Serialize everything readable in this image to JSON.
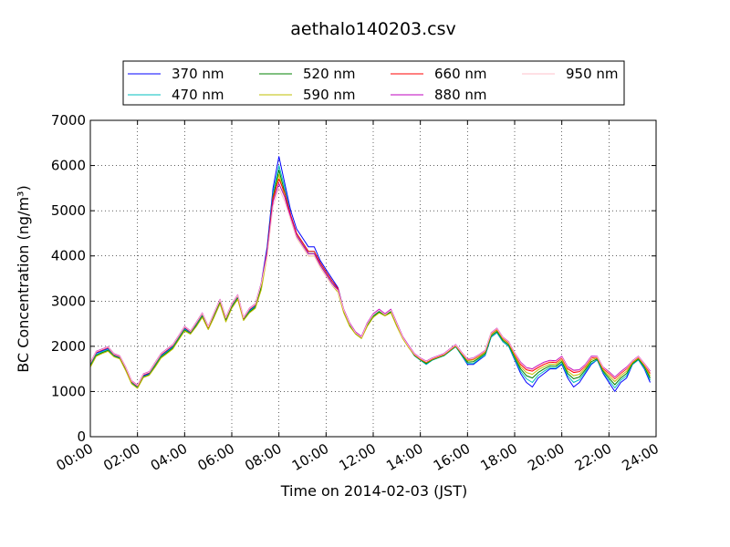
{
  "chart_data": {
    "type": "line",
    "title": "aethalo140203.csv",
    "xlabel": "Time on 2014-02-03 (JST)",
    "ylabel": "BC Concentration (ng/m³)",
    "xlim": [
      0,
      24
    ],
    "ylim": [
      0,
      7000
    ],
    "x_tick_labels": [
      "00:00",
      "02:00",
      "04:00",
      "06:00",
      "08:00",
      "10:00",
      "12:00",
      "14:00",
      "16:00",
      "18:00",
      "20:00",
      "22:00",
      "24:00"
    ],
    "y_tick_labels": [
      "0",
      "1000",
      "2000",
      "3000",
      "4000",
      "5000",
      "6000",
      "7000"
    ],
    "grid": true,
    "legend_position": "top",
    "x": [
      0.0,
      0.25,
      0.5,
      0.75,
      1.0,
      1.25,
      1.5,
      1.75,
      2.0,
      2.25,
      2.5,
      2.75,
      3.0,
      3.25,
      3.5,
      3.75,
      4.0,
      4.25,
      4.5,
      4.75,
      5.0,
      5.25,
      5.5,
      5.75,
      6.0,
      6.25,
      6.5,
      6.75,
      7.0,
      7.25,
      7.5,
      7.75,
      8.0,
      8.25,
      8.5,
      8.75,
      9.0,
      9.25,
      9.5,
      9.75,
      10.0,
      10.25,
      10.5,
      10.75,
      11.0,
      11.25,
      11.5,
      11.75,
      12.0,
      12.25,
      12.5,
      12.75,
      13.0,
      13.25,
      13.5,
      13.75,
      14.0,
      14.25,
      14.5,
      14.75,
      15.0,
      15.25,
      15.5,
      15.75,
      16.0,
      16.25,
      16.5,
      16.75,
      17.0,
      17.25,
      17.5,
      17.75,
      18.0,
      18.25,
      18.5,
      18.75,
      19.0,
      19.25,
      19.5,
      19.75,
      20.0,
      20.25,
      20.5,
      20.75,
      21.0,
      21.25,
      21.5,
      21.75,
      22.0,
      22.25,
      22.5,
      22.75,
      23.0,
      23.25,
      23.5,
      23.75
    ],
    "series": [
      {
        "name": "370 nm",
        "color": "#0000ff",
        "values": [
          1600,
          1850,
          1900,
          1950,
          1800,
          1750,
          1500,
          1200,
          1100,
          1350,
          1400,
          1600,
          1800,
          1900,
          2000,
          2200,
          2400,
          2300,
          2500,
          2700,
          2400,
          2700,
          3000,
          2600,
          2900,
          3100,
          2600,
          2800,
          2900,
          3400,
          4200,
          5500,
          6200,
          5600,
          5000,
          4600,
          4400,
          4200,
          4200,
          3900,
          3700,
          3500,
          3300,
          2800,
          2500,
          2300,
          2200,
          2500,
          2700,
          2800,
          2700,
          2800,
          2500,
          2200,
          2000,
          1800,
          1700,
          1600,
          1700,
          1750,
          1800,
          1900,
          2000,
          1800,
          1600,
          1600,
          1700,
          1800,
          2200,
          2300,
          2100,
          2000,
          1700,
          1400,
          1200,
          1100,
          1300,
          1400,
          1500,
          1500,
          1600,
          1300,
          1100,
          1200,
          1400,
          1600,
          1700,
          1400,
          1200,
          1000,
          1200,
          1300,
          1600,
          1700,
          1500,
          1200
        ]
      },
      {
        "name": "470 nm",
        "color": "#00bfbf",
        "values": [
          1580,
          1820,
          1880,
          1930,
          1790,
          1740,
          1480,
          1190,
          1090,
          1330,
          1380,
          1580,
          1780,
          1880,
          1980,
          2180,
          2380,
          2290,
          2480,
          2680,
          2390,
          2680,
          2980,
          2580,
          2880,
          3080,
          2590,
          2780,
          2880,
          3350,
          4100,
          5400,
          6000,
          5500,
          4900,
          4500,
          4300,
          4100,
          4100,
          3850,
          3650,
          3450,
          3260,
          2780,
          2480,
          2290,
          2190,
          2480,
          2680,
          2780,
          2690,
          2780,
          2480,
          2190,
          1990,
          1790,
          1690,
          1600,
          1690,
          1740,
          1790,
          1890,
          1990,
          1800,
          1620,
          1620,
          1720,
          1810,
          2200,
          2300,
          2100,
          2000,
          1720,
          1450,
          1280,
          1200,
          1360,
          1450,
          1530,
          1520,
          1620,
          1350,
          1200,
          1260,
          1440,
          1620,
          1700,
          1420,
          1250,
          1080,
          1250,
          1350,
          1600,
          1700,
          1520,
          1250
        ]
      },
      {
        "name": "520 nm",
        "color": "#008000",
        "values": [
          1560,
          1800,
          1860,
          1910,
          1780,
          1730,
          1470,
          1180,
          1080,
          1320,
          1370,
          1560,
          1760,
          1860,
          1960,
          2160,
          2360,
          2280,
          2460,
          2660,
          2380,
          2660,
          2960,
          2560,
          2860,
          3060,
          2580,
          2760,
          2860,
          3300,
          4050,
          5300,
          5900,
          5400,
          4850,
          4450,
          4250,
          4050,
          4050,
          3800,
          3600,
          3400,
          3230,
          2760,
          2460,
          2280,
          2180,
          2460,
          2660,
          2760,
          2680,
          2760,
          2460,
          2180,
          1980,
          1800,
          1700,
          1620,
          1700,
          1750,
          1800,
          1900,
          2000,
          1820,
          1650,
          1660,
          1750,
          1840,
          2230,
          2330,
          2130,
          2030,
          1760,
          1500,
          1350,
          1300,
          1420,
          1500,
          1570,
          1560,
          1660,
          1400,
          1280,
          1320,
          1480,
          1660,
          1720,
          1450,
          1300,
          1150,
          1300,
          1400,
          1620,
          1720,
          1550,
          1300
        ]
      },
      {
        "name": "590 nm",
        "color": "#bfbf00",
        "values": [
          1540,
          1780,
          1840,
          1890,
          1770,
          1720,
          1460,
          1170,
          1070,
          1310,
          1360,
          1540,
          1740,
          1840,
          1940,
          2140,
          2340,
          2270,
          2440,
          2640,
          2370,
          2640,
          2940,
          2540,
          2840,
          3040,
          2570,
          2740,
          2840,
          3250,
          4000,
          5200,
          5800,
          5300,
          4800,
          4400,
          4200,
          4000,
          4000,
          3750,
          3550,
          3350,
          3200,
          2740,
          2440,
          2270,
          2170,
          2440,
          2640,
          2740,
          2670,
          2740,
          2440,
          2170,
          1970,
          1810,
          1710,
          1640,
          1710,
          1760,
          1810,
          1910,
          2010,
          1840,
          1680,
          1700,
          1780,
          1870,
          2260,
          2360,
          2160,
          2060,
          1800,
          1550,
          1420,
          1380,
          1480,
          1550,
          1610,
          1600,
          1700,
          1450,
          1350,
          1380,
          1520,
          1700,
          1740,
          1480,
          1350,
          1220,
          1350,
          1450,
          1640,
          1740,
          1580,
          1350
        ]
      },
      {
        "name": "660 nm",
        "color": "#ff0000",
        "values": [
          1620,
          1870,
          1920,
          1970,
          1820,
          1770,
          1520,
          1220,
          1120,
          1370,
          1420,
          1620,
          1820,
          1920,
          2020,
          2220,
          2420,
          2320,
          2520,
          2720,
          2420,
          2720,
          3020,
          2620,
          2920,
          3120,
          2620,
          2820,
          2920,
          3380,
          4100,
          5300,
          5700,
          5400,
          4900,
          4500,
          4300,
          4100,
          4100,
          3850,
          3650,
          3450,
          3280,
          2800,
          2500,
          2300,
          2200,
          2500,
          2700,
          2800,
          2700,
          2800,
          2500,
          2200,
          2000,
          1820,
          1720,
          1650,
          1720,
          1770,
          1820,
          1920,
          2020,
          1850,
          1700,
          1720,
          1800,
          1890,
          2280,
          2380,
          2180,
          2080,
          1830,
          1600,
          1480,
          1450,
          1530,
          1600,
          1650,
          1640,
          1740,
          1500,
          1420,
          1440,
          1560,
          1740,
          1760,
          1510,
          1400,
          1280,
          1400,
          1500,
          1660,
          1760,
          1600,
          1400
        ]
      },
      {
        "name": "880 nm",
        "color": "#bf00bf",
        "values": [
          1640,
          1890,
          1940,
          1990,
          1840,
          1790,
          1540,
          1240,
          1140,
          1390,
          1440,
          1640,
          1840,
          1940,
          2040,
          2240,
          2440,
          2340,
          2540,
          2740,
          2440,
          2740,
          3040,
          2640,
          2940,
          3140,
          2640,
          2840,
          2940,
          3400,
          4050,
          5200,
          5600,
          5300,
          4850,
          4450,
          4250,
          4050,
          4050,
          3800,
          3600,
          3400,
          3250,
          2820,
          2520,
          2320,
          2220,
          2520,
          2720,
          2820,
          2720,
          2820,
          2520,
          2220,
          2020,
          1840,
          1740,
          1670,
          1740,
          1790,
          1840,
          1940,
          2040,
          1870,
          1720,
          1740,
          1820,
          1910,
          2300,
          2400,
          2200,
          2100,
          1860,
          1650,
          1530,
          1500,
          1580,
          1650,
          1690,
          1680,
          1780,
          1550,
          1470,
          1480,
          1600,
          1780,
          1780,
          1540,
          1440,
          1320,
          1440,
          1540,
          1680,
          1780,
          1620,
          1450
        ]
      },
      {
        "name": "950 nm",
        "color": "#ffc0cb",
        "values": [
          1630,
          1880,
          1930,
          1980,
          1830,
          1780,
          1530,
          1230,
          1130,
          1380,
          1430,
          1630,
          1830,
          1930,
          2030,
          2230,
          2430,
          2330,
          2530,
          2730,
          2430,
          2730,
          3030,
          2630,
          2930,
          3130,
          2630,
          2830,
          2930,
          3380,
          4000,
          5100,
          5500,
          5200,
          4800,
          4400,
          4200,
          4000,
          4000,
          3750,
          3550,
          3350,
          3230,
          2800,
          2500,
          2300,
          2200,
          2500,
          2700,
          2800,
          2700,
          2800,
          2500,
          2200,
          2000,
          1830,
          1730,
          1660,
          1730,
          1780,
          1830,
          1930,
          2030,
          1860,
          1710,
          1730,
          1810,
          1900,
          2290,
          2390,
          2190,
          2090,
          1850,
          1630,
          1510,
          1480,
          1560,
          1630,
          1670,
          1660,
          1760,
          1530,
          1450,
          1460,
          1580,
          1760,
          1770,
          1530,
          1420,
          1300,
          1420,
          1520,
          1670,
          1770,
          1610,
          1430
        ]
      }
    ]
  }
}
